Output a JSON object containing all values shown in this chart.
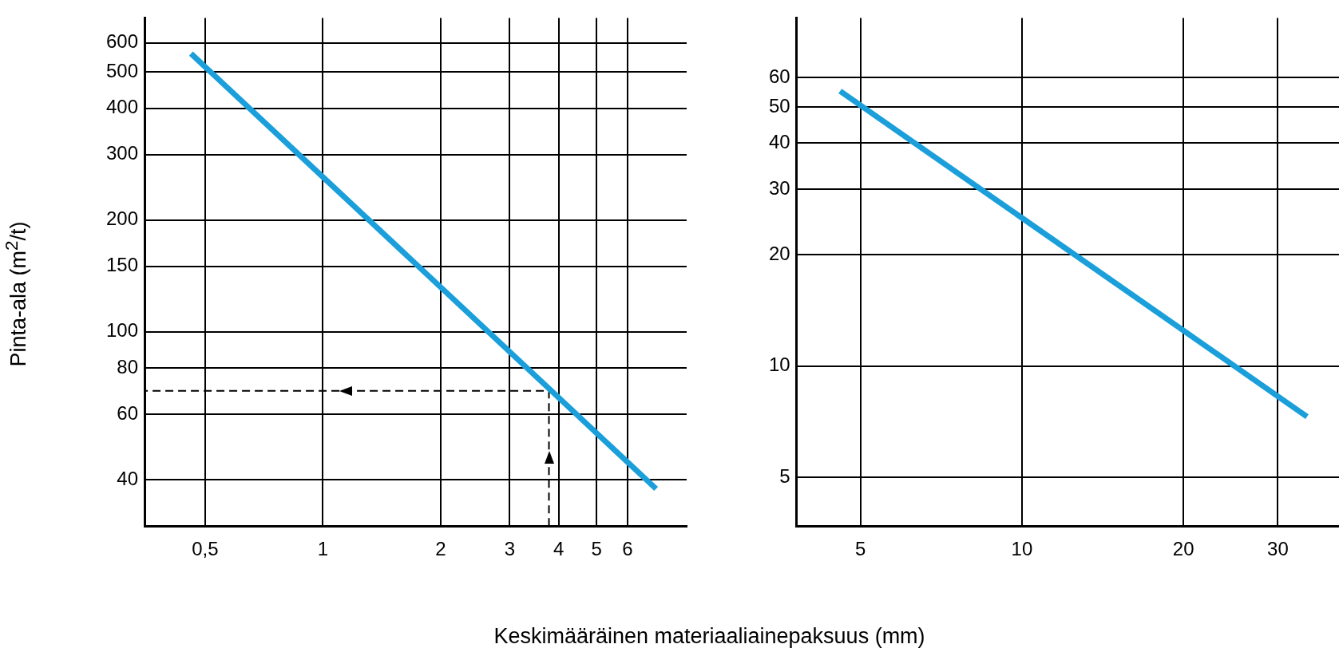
{
  "chart_data": [
    {
      "type": "line",
      "ylabel": "Pinta-ala (m$^{2}$/t)",
      "xlabel": "Keskimääräinen materiaaliainepaksuus (mm)",
      "log": "xy",
      "grid": true,
      "legend": false,
      "marker": "none",
      "xlim": [
        0.35,
        8.5
      ],
      "xticks": [
        {
          "value": 0.5,
          "label": "0,5"
        },
        1,
        2,
        3,
        4,
        5,
        6
      ],
      "ylim": [
        30,
        700
      ],
      "yticks": [
        40,
        60,
        80,
        100,
        150,
        200,
        300,
        400,
        500,
        600
      ],
      "series": [
        {
          "type": "line",
          "color": "#1a9fdb",
          "line_style": "solid",
          "x": [
            0.46,
            1,
            7.1
          ],
          "values": [
            561,
            261,
            37.8
          ]
        },
        {
          "type": "line",
          "color": "#000000",
          "line_style": "dashed",
          "x": [
            3.78,
            3.78,
            0.35
          ],
          "values": [
            30,
            69.4,
            69.4
          ]
        }
      ]
    },
    {
      "type": "line",
      "log": "xy",
      "grid": true,
      "legend": false,
      "marker": "none",
      "xlim": [
        3.8,
        39
      ],
      "xticks": [
        5,
        10,
        20,
        30
      ],
      "ylim": [
        3.7,
        87
      ],
      "yticks": [
        5,
        10,
        20,
        30,
        40,
        50,
        60
      ],
      "series": [
        {
          "type": "line",
          "color": "#1a9fdb",
          "line_style": "solid",
          "x": [
            4.58,
            34
          ],
          "values": [
            55.2,
            7.3
          ]
        }
      ]
    }
  ]
}
